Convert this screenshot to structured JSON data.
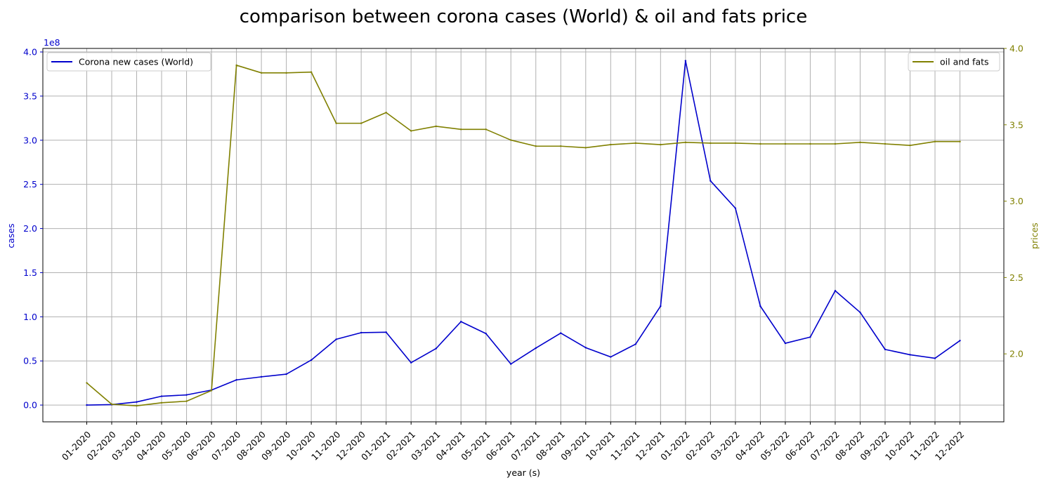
{
  "chart_data": {
    "type": "line",
    "title": "comparison between corona cases (World) & oil and fats price",
    "xlabel": "year (s)",
    "categories": [
      "01-2020",
      "02-2020",
      "03-2020",
      "04-2020",
      "05-2020",
      "06-2020",
      "07-2020",
      "08-2020",
      "09-2020",
      "10-2020",
      "11-2020",
      "12-2020",
      "01-2021",
      "02-2021",
      "03-2021",
      "04-2021",
      "05-2021",
      "06-2021",
      "07-2021",
      "08-2021",
      "09-2021",
      "10-2021",
      "11-2021",
      "12-2021",
      "01-2022",
      "02-2022",
      "03-2022",
      "04-2022",
      "05-2022",
      "06-2022",
      "07-2022",
      "08-2022",
      "09-2022",
      "10-2022",
      "11-2022",
      "12-2022"
    ],
    "grid": true,
    "left_axis": {
      "label": "cases",
      "color": "#0000cc",
      "offset_text": "1e8",
      "ylim": [
        -0.19,
        4.04
      ],
      "ticks": [
        0.0,
        0.5,
        1.0,
        1.5,
        2.0,
        2.5,
        3.0,
        3.5,
        4.0
      ],
      "tick_labels": [
        "0.0",
        "0.5",
        "1.0",
        "1.5",
        "2.0",
        "2.5",
        "3.0",
        "3.5",
        "4.0"
      ]
    },
    "right_axis": {
      "label": "prices",
      "color": "#808000",
      "ylim": [
        1.555,
        4.0
      ],
      "ticks": [
        2.0,
        2.5,
        3.0,
        3.5,
        4.0
      ],
      "tick_labels": [
        "2.0",
        "2.5",
        "3.0",
        "3.5",
        "4.0"
      ]
    },
    "series": [
      {
        "name": "Corona new cases (World)",
        "axis": "left",
        "color": "#0000cc",
        "legend_position": "upper left",
        "values": [
          0.0,
          0.005,
          0.035,
          0.1,
          0.115,
          0.17,
          0.285,
          0.32,
          0.35,
          0.51,
          0.745,
          0.82,
          0.825,
          0.48,
          0.64,
          0.945,
          0.81,
          0.465,
          0.645,
          0.815,
          0.65,
          0.545,
          0.69,
          1.12,
          3.9,
          2.54,
          2.23,
          1.12,
          0.7,
          0.77,
          1.295,
          1.05,
          0.63,
          0.57,
          0.53,
          0.73
        ]
      },
      {
        "name": "oil and fats",
        "axis": "right",
        "color": "#808000",
        "legend_position": "upper right",
        "values": [
          1.81,
          1.67,
          1.66,
          1.68,
          1.69,
          1.76,
          3.89,
          3.84,
          3.84,
          3.845,
          3.51,
          3.51,
          3.58,
          3.46,
          3.49,
          3.47,
          3.47,
          3.4,
          3.36,
          3.36,
          3.35,
          3.37,
          3.38,
          3.37,
          3.385,
          3.38,
          3.38,
          3.375,
          3.375,
          3.375,
          3.375,
          3.385,
          3.375,
          3.365,
          3.39,
          3.39
        ]
      }
    ]
  }
}
